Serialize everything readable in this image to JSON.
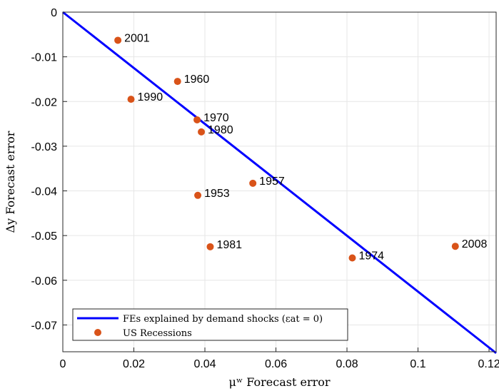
{
  "chart_data": {
    "type": "scatter",
    "xlabel": "μʷ Forecast error",
    "ylabel": "Δy Forecast error",
    "xlim": [
      0,
      0.122
    ],
    "ylim": [
      -0.076,
      0
    ],
    "x_ticks": [
      0,
      0.02,
      0.04,
      0.06,
      0.08,
      0.1,
      0.12
    ],
    "x_tick_labels": [
      "0",
      "0.02",
      "0.04",
      "0.06",
      "0.08",
      "0.1",
      "0.12"
    ],
    "y_ticks": [
      0,
      -0.01,
      -0.02,
      -0.03,
      -0.04,
      -0.05,
      -0.06,
      -0.07
    ],
    "y_tick_labels": [
      "0",
      "-0.01",
      "-0.02",
      "-0.03",
      "-0.04",
      "-0.05",
      "-0.06",
      "-0.07"
    ],
    "grid": true,
    "legend_position": "bottom-left",
    "series": [
      {
        "name": "FEs explained by demand shocks (εat = 0)",
        "type": "line",
        "color": "#0000ff",
        "x": [
          0,
          0.122
        ],
        "y": [
          0,
          -0.0763
        ]
      },
      {
        "name": "US Recessions",
        "type": "scatter",
        "color": "#d95319",
        "points": [
          {
            "label": "2001",
            "x": 0.0155,
            "y": -0.0063
          },
          {
            "label": "1960",
            "x": 0.0323,
            "y": -0.0155
          },
          {
            "label": "1990",
            "x": 0.0192,
            "y": -0.0195
          },
          {
            "label": "1970",
            "x": 0.0378,
            "y": -0.0241
          },
          {
            "label": "1980",
            "x": 0.039,
            "y": -0.0268
          },
          {
            "label": "1957",
            "x": 0.0535,
            "y": -0.0383
          },
          {
            "label": "1953",
            "x": 0.038,
            "y": -0.041
          },
          {
            "label": "1981",
            "x": 0.0415,
            "y": -0.0525
          },
          {
            "label": "1974",
            "x": 0.0815,
            "y": -0.055
          },
          {
            "label": "2008",
            "x": 0.1105,
            "y": -0.0524
          }
        ]
      }
    ]
  }
}
